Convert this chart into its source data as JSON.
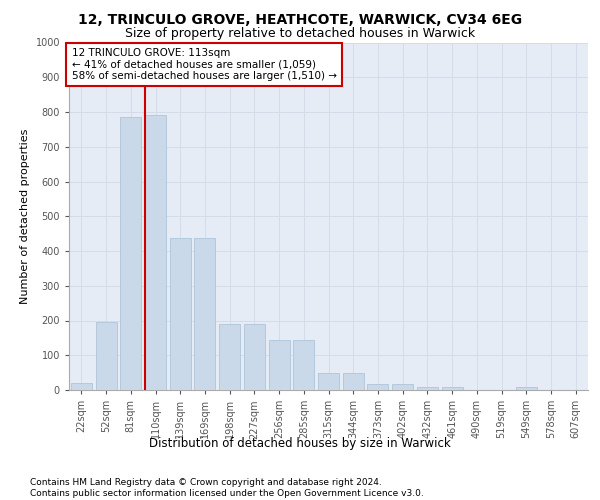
{
  "title1": "12, TRINCULO GROVE, HEATHCOTE, WARWICK, CV34 6EG",
  "title2": "Size of property relative to detached houses in Warwick",
  "xlabel": "Distribution of detached houses by size in Warwick",
  "ylabel": "Number of detached properties",
  "categories": [
    "22sqm",
    "52sqm",
    "81sqm",
    "110sqm",
    "139sqm",
    "169sqm",
    "198sqm",
    "227sqm",
    "256sqm",
    "285sqm",
    "315sqm",
    "344sqm",
    "373sqm",
    "402sqm",
    "432sqm",
    "461sqm",
    "490sqm",
    "519sqm",
    "549sqm",
    "578sqm",
    "607sqm"
  ],
  "values": [
    20,
    195,
    785,
    790,
    437,
    437,
    190,
    190,
    145,
    145,
    50,
    50,
    17,
    17,
    10,
    10,
    0,
    0,
    10,
    0,
    0
  ],
  "bar_color": "#c9d9ea",
  "bar_edge_color": "#a8bfd4",
  "grid_color": "#d4dcea",
  "background_color": "#e6ecf5",
  "vline_color": "#cc0000",
  "annotation_text": "12 TRINCULO GROVE: 113sqm\n← 41% of detached houses are smaller (1,059)\n58% of semi-detached houses are larger (1,510) →",
  "annotation_box_color": "#ffffff",
  "annotation_box_edge": "#cc0000",
  "ylim": [
    0,
    1000
  ],
  "yticks": [
    0,
    100,
    200,
    300,
    400,
    500,
    600,
    700,
    800,
    900,
    1000
  ],
  "footer": "Contains HM Land Registry data © Crown copyright and database right 2024.\nContains public sector information licensed under the Open Government Licence v3.0.",
  "title1_fontsize": 10,
  "title2_fontsize": 9,
  "xlabel_fontsize": 8.5,
  "ylabel_fontsize": 8,
  "tick_fontsize": 7,
  "annot_fontsize": 7.5,
  "footer_fontsize": 6.5
}
